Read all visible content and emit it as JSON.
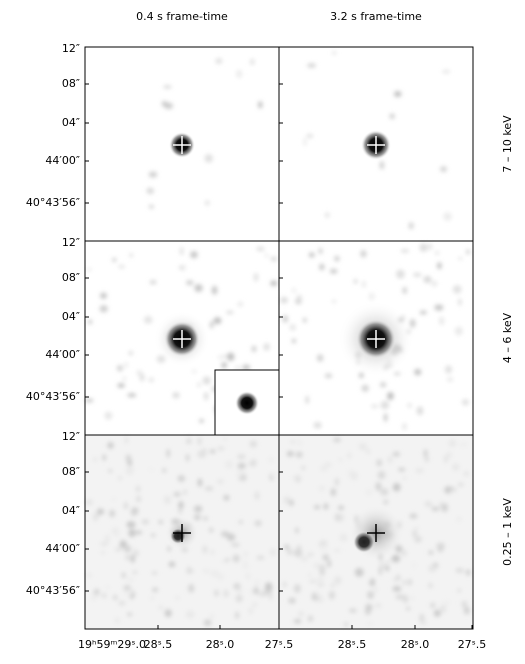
{
  "columns": [
    "0.4 s frame-time",
    "3.2 s frame-time"
  ],
  "rows": [
    "7 – 10 keV",
    "4 – 6 keV",
    "0.25 – 1 keV"
  ],
  "y_tick_labels": [
    "12″",
    "08″",
    "04″",
    "44′00″",
    "40°43′56″"
  ],
  "x_tick_labels": [
    "19ʰ59ᵐ29ˢ.0",
    "28ˢ.5",
    "28ˢ.0",
    "27ˢ.5",
    "28ˢ.5",
    "28ˢ.0",
    "27ˢ.5"
  ]
}
